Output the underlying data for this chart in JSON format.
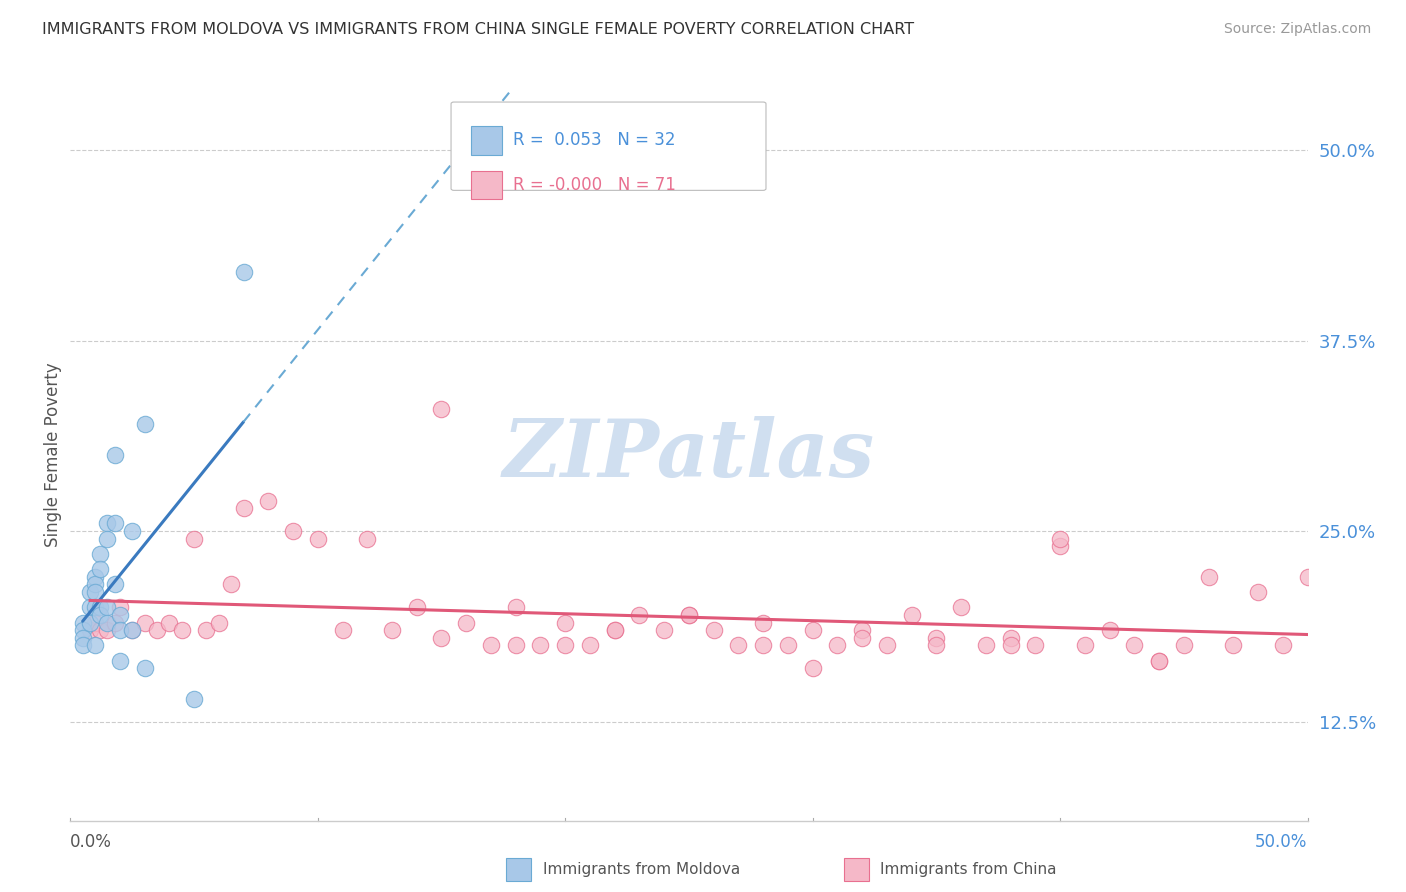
{
  "title": "IMMIGRANTS FROM MOLDOVA VS IMMIGRANTS FROM CHINA SINGLE FEMALE POVERTY CORRELATION CHART",
  "source": "Source: ZipAtlas.com",
  "ylabel": "Single Female Poverty",
  "xlim": [
    0.0,
    0.5
  ],
  "ylim": [
    0.06,
    0.54
  ],
  "yticks": [
    0.125,
    0.25,
    0.375,
    0.5
  ],
  "ytick_labels": [
    "12.5%",
    "25.0%",
    "37.5%",
    "50.0%"
  ],
  "legend_label1": "Immigrants from Moldova",
  "legend_label2": "Immigrants from China",
  "color_moldova": "#a8c8e8",
  "color_china": "#f5b8c8",
  "edge_moldova": "#6aaad4",
  "edge_china": "#e87090",
  "line_moldova": "#3a7abf",
  "line_china": "#e05878",
  "tick_color": "#4a90d9",
  "watermark_color": "#d0dff0",
  "moldova_x": [
    0.005,
    0.005,
    0.005,
    0.005,
    0.008,
    0.008,
    0.008,
    0.01,
    0.01,
    0.01,
    0.01,
    0.01,
    0.012,
    0.012,
    0.012,
    0.012,
    0.015,
    0.015,
    0.015,
    0.015,
    0.018,
    0.018,
    0.018,
    0.02,
    0.02,
    0.02,
    0.025,
    0.025,
    0.03,
    0.03,
    0.05,
    0.07
  ],
  "moldova_y": [
    0.19,
    0.185,
    0.18,
    0.175,
    0.21,
    0.2,
    0.19,
    0.22,
    0.215,
    0.21,
    0.2,
    0.175,
    0.235,
    0.225,
    0.2,
    0.195,
    0.255,
    0.245,
    0.2,
    0.19,
    0.3,
    0.255,
    0.215,
    0.195,
    0.185,
    0.165,
    0.25,
    0.185,
    0.32,
    0.16,
    0.14,
    0.42
  ],
  "china_x": [
    0.008,
    0.01,
    0.012,
    0.015,
    0.018,
    0.02,
    0.025,
    0.03,
    0.035,
    0.04,
    0.045,
    0.05,
    0.055,
    0.06,
    0.065,
    0.07,
    0.08,
    0.09,
    0.1,
    0.11,
    0.12,
    0.13,
    0.14,
    0.15,
    0.16,
    0.17,
    0.18,
    0.19,
    0.2,
    0.21,
    0.22,
    0.23,
    0.24,
    0.25,
    0.26,
    0.27,
    0.28,
    0.29,
    0.3,
    0.31,
    0.32,
    0.33,
    0.34,
    0.35,
    0.36,
    0.37,
    0.38,
    0.39,
    0.4,
    0.41,
    0.42,
    0.43,
    0.44,
    0.45,
    0.46,
    0.47,
    0.48,
    0.49,
    0.5,
    0.32,
    0.28,
    0.22,
    0.18,
    0.15,
    0.25,
    0.35,
    0.4,
    0.44,
    0.38,
    0.3,
    0.2
  ],
  "china_y": [
    0.185,
    0.19,
    0.185,
    0.185,
    0.19,
    0.2,
    0.185,
    0.19,
    0.185,
    0.19,
    0.185,
    0.245,
    0.185,
    0.19,
    0.215,
    0.265,
    0.27,
    0.25,
    0.245,
    0.185,
    0.245,
    0.185,
    0.2,
    0.18,
    0.19,
    0.175,
    0.2,
    0.175,
    0.19,
    0.175,
    0.185,
    0.195,
    0.185,
    0.195,
    0.185,
    0.175,
    0.19,
    0.175,
    0.185,
    0.175,
    0.185,
    0.175,
    0.195,
    0.18,
    0.2,
    0.175,
    0.18,
    0.175,
    0.24,
    0.175,
    0.185,
    0.175,
    0.165,
    0.175,
    0.22,
    0.175,
    0.21,
    0.175,
    0.22,
    0.18,
    0.175,
    0.185,
    0.175,
    0.33,
    0.195,
    0.175,
    0.245,
    0.165,
    0.175,
    0.16,
    0.175
  ]
}
